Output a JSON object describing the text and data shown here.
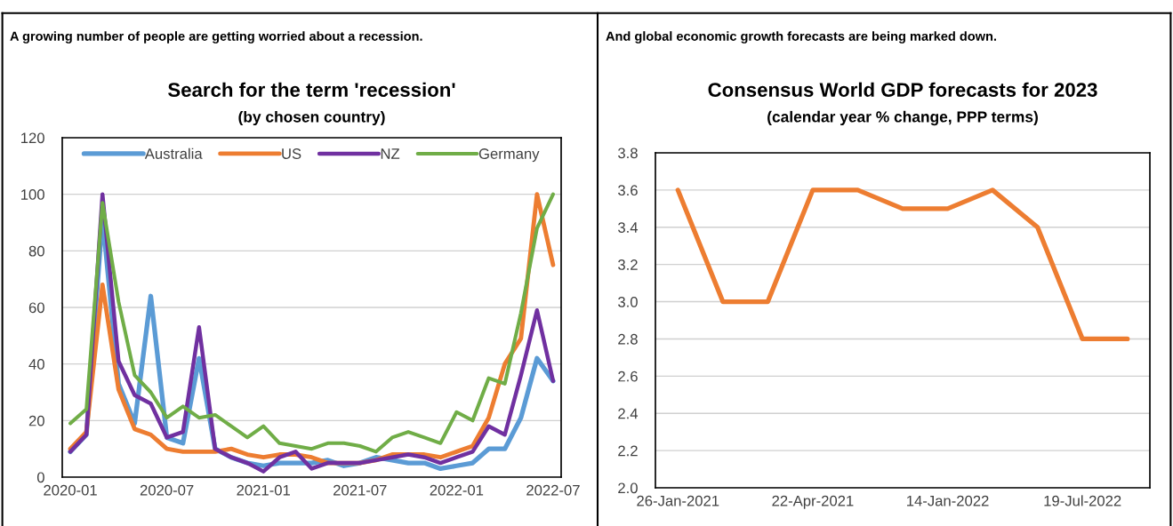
{
  "chart_data": [
    {
      "type": "line",
      "title": "Search for the term 'recession'",
      "subtitle": "(by chosen country)",
      "annotations": [
        "A growing number of people are getting worried about a recession."
      ],
      "categories": [
        "2020-01",
        null,
        null,
        null,
        null,
        null,
        "2020-07",
        null,
        null,
        null,
        null,
        null,
        "2021-01",
        null,
        null,
        null,
        null,
        null,
        "2021-07",
        null,
        null,
        null,
        null,
        null,
        "2022-01",
        null,
        null,
        null,
        null,
        null,
        "2022-07"
      ],
      "series": [
        {
          "name": "Australia",
          "color": "#5b9bd5",
          "values": [
            9,
            15,
            92,
            33,
            19,
            64,
            14,
            12,
            42,
            10,
            7,
            5,
            4,
            5,
            5,
            5,
            6,
            4,
            5,
            7,
            6,
            5,
            5,
            3,
            4,
            5,
            10,
            10,
            21,
            42,
            34
          ]
        },
        {
          "name": "US",
          "color": "#ed7d31",
          "values": [
            10,
            16,
            68,
            31,
            17,
            15,
            10,
            9,
            9,
            9,
            10,
            8,
            7,
            8,
            8,
            7,
            5,
            5,
            5,
            6,
            8,
            8,
            8,
            7,
            9,
            11,
            21,
            40,
            49,
            100,
            75
          ]
        },
        {
          "name": "NZ",
          "color": "#7030a0",
          "values": [
            9,
            15,
            100,
            41,
            29,
            26,
            14,
            16,
            53,
            10,
            7,
            5,
            2,
            7,
            9,
            3,
            5,
            5,
            5,
            6,
            7,
            8,
            7,
            5,
            7,
            9,
            18,
            15,
            36,
            59,
            34
          ]
        },
        {
          "name": "Germany",
          "color": "#70ad47",
          "values": [
            19,
            24,
            97,
            62,
            36,
            30,
            21,
            25,
            21,
            22,
            18,
            14,
            18,
            12,
            11,
            10,
            12,
            12,
            11,
            9,
            14,
            16,
            14,
            12,
            23,
            20,
            35,
            33,
            58,
            88,
            100
          ]
        }
      ],
      "ylim": [
        0,
        120
      ],
      "yticks": [
        0,
        20,
        40,
        60,
        80,
        100,
        120
      ],
      "grid": "y",
      "legend": "top",
      "marker": "none",
      "line_style": "solid"
    },
    {
      "type": "line",
      "title": "Consensus World GDP forecasts for 2023",
      "subtitle": "(calendar year % change, PPP terms)",
      "annotations": [
        "And global economic growth forecasts are being marked down."
      ],
      "categories": [
        "26-Jan-2021",
        null,
        null,
        "22-Apr-2021",
        null,
        null,
        "14-Jan-2022",
        null,
        null,
        "19-Jul-2022",
        null
      ],
      "series": [
        {
          "color": "#ed7d31",
          "values": [
            3.6,
            3.0,
            3.0,
            3.6,
            3.6,
            3.5,
            3.5,
            3.6,
            3.4,
            2.8,
            2.8
          ]
        }
      ],
      "ylim": [
        2.0,
        3.8
      ],
      "yticks": [
        {
          "value": 2,
          "label": "2.0"
        },
        2.2,
        2.4,
        2.6,
        2.8,
        {
          "value": 3,
          "label": "3.0"
        },
        3.2,
        3.4,
        3.6,
        3.8
      ],
      "grid": "y",
      "legend": false,
      "marker": "none",
      "line_style": "solid"
    }
  ]
}
